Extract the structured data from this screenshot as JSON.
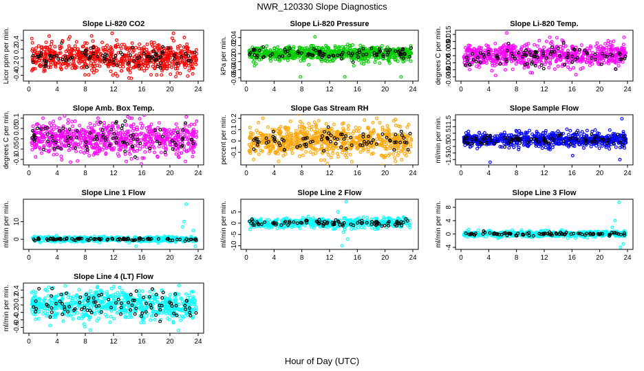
{
  "figure": {
    "title": "NWR_120330  Slope Diagnostics",
    "xlabel": "Hour of Day (UTC)"
  },
  "chart_data": [
    {
      "type": "scatter",
      "title": "Slope Li-820 CO2",
      "ylabel": "Licor ppm per min.",
      "xlim": [
        0,
        24
      ],
      "ylim": [
        -0.5,
        0.6
      ],
      "yticks": [
        -0.4,
        -0.2,
        0.0,
        0.2,
        0.4
      ],
      "xticks": [
        0,
        4,
        8,
        12,
        16,
        20,
        24
      ],
      "grid": false,
      "series": [
        {
          "color": "#ff0000",
          "points_count": 700,
          "spread": 0.18,
          "outliers": [
            [
              5.8,
              0.48
            ],
            [
              8.9,
              0.5
            ],
            [
              11.8,
              0.56
            ],
            [
              20.5,
              0.56
            ],
            [
              12.3,
              -0.36
            ],
            [
              9.2,
              -0.34
            ]
          ]
        },
        {
          "color": "#000000",
          "points_count": 90,
          "spread": 0.12
        }
      ]
    },
    {
      "type": "scatter",
      "title": "Slope Li-820 Pressure",
      "ylabel": "kPa per min.",
      "xlim": [
        0,
        24
      ],
      "ylim": [
        -0.065,
        0.055
      ],
      "yticks": [
        -0.06,
        -0.04,
        -0.02,
        0.0,
        0.02,
        0.04
      ],
      "xticks": [
        0,
        4,
        8,
        12,
        16,
        20,
        24
      ],
      "grid": false,
      "series": [
        {
          "color": "#00cc00",
          "points_count": 700,
          "spread": 0.01,
          "outliers": [
            [
              9.9,
              0.042
            ],
            [
              7.8,
              -0.058
            ],
            [
              14.2,
              -0.058
            ],
            [
              22.3,
              -0.058
            ],
            [
              15.5,
              -0.03
            ],
            [
              9.0,
              -0.028
            ]
          ]
        },
        {
          "color": "#000000",
          "points_count": 90,
          "spread": 0.008
        }
      ]
    },
    {
      "type": "scatter",
      "title": "Slope Li-820 Temp.",
      "ylabel": "degrees C per min.",
      "xlim": [
        0,
        24
      ],
      "ylim": [
        -0.017,
        0.017
      ],
      "yticks": [
        -0.015,
        -0.01,
        -0.005,
        0.0,
        0.005,
        0.01,
        0.015
      ],
      "xticks": [
        0,
        4,
        8,
        12,
        16,
        20,
        24
      ],
      "grid": false,
      "series": [
        {
          "color": "#ff00ff",
          "points_count": 700,
          "spread": 0.0045,
          "outliers": [
            [
              6.6,
              0.016
            ],
            [
              5.0,
              -0.014
            ],
            [
              10.0,
              -0.012
            ],
            [
              12.8,
              0.013
            ],
            [
              23.5,
              0.013
            ]
          ]
        },
        {
          "color": "#000000",
          "points_count": 90,
          "spread": 0.004
        }
      ]
    },
    {
      "type": "scatter",
      "title": "Slope Amb. Box Temp.",
      "ylabel": "degrees C per min.",
      "xlim": [
        0,
        24
      ],
      "ylim": [
        -0.12,
        0.11
      ],
      "yticks": [
        -0.1,
        -0.05,
        0.0,
        0.05,
        0.1
      ],
      "xticks": [
        0,
        4,
        8,
        12,
        16,
        20,
        24
      ],
      "grid": false,
      "series": [
        {
          "color": "#ff00ff",
          "points_count": 700,
          "spread": 0.045,
          "outliers": [
            [
              2.0,
              0.1
            ],
            [
              9.8,
              0.1
            ],
            [
              14.6,
              0.1
            ],
            [
              13.8,
              -0.11
            ],
            [
              22.2,
              -0.11
            ]
          ]
        },
        {
          "color": "#000000",
          "points_count": 90,
          "spread": 0.04
        }
      ]
    },
    {
      "type": "scatter",
      "title": "Slope Gas Stream RH",
      "ylabel": "percent per min.",
      "xlim": [
        0,
        24
      ],
      "ylim": [
        -0.2,
        0.22
      ],
      "yticks": [
        -0.1,
        0.0,
        0.1,
        0.2
      ],
      "xticks": [
        0,
        4,
        8,
        12,
        16,
        20,
        24
      ],
      "grid": false,
      "series": [
        {
          "color": "#ffa500",
          "points_count": 700,
          "spread": 0.08,
          "outliers": [
            [
              2.4,
              0.2
            ],
            [
              18.8,
              0.2
            ],
            [
              21.5,
              0.19
            ],
            [
              21.5,
              -0.18
            ]
          ]
        },
        {
          "color": "#000000",
          "points_count": 80,
          "spread": 0.06
        }
      ]
    },
    {
      "type": "scatter",
      "title": "Slope Sample Flow",
      "ylabel": "ml/min per min.",
      "xlim": [
        0,
        24
      ],
      "ylim": [
        -1.8,
        1.8
      ],
      "yticks": [
        -1.5,
        -1.0,
        -0.5,
        0.0,
        0.5,
        1.0,
        1.5
      ],
      "xticks": [
        0,
        4,
        8,
        12,
        16,
        20,
        24
      ],
      "grid": false,
      "series": [
        {
          "color": "#0000ff",
          "points_count": 700,
          "spread": 0.3,
          "outliers": [
            [
              4.2,
              -1.7
            ],
            [
              23.2,
              1.6
            ],
            [
              22.9,
              -1.5
            ],
            [
              16.1,
              -1.2
            ]
          ]
        },
        {
          "color": "#000000",
          "points_count": 90,
          "spread": 0.25
        }
      ]
    },
    {
      "type": "scatter",
      "title": "Slope Line 1 Flow",
      "ylabel": "ml/min per min.",
      "xlim": [
        0,
        24
      ],
      "ylim": [
        -5,
        22
      ],
      "yticks": [
        0,
        10
      ],
      "xticks": [
        0,
        4,
        8,
        12,
        16,
        20,
        24
      ],
      "grid": false,
      "series": [
        {
          "color": "#00ffff",
          "points_count": 500,
          "spread": 0.8,
          "outliers": [
            [
              22.3,
              20
            ],
            [
              22.0,
              10
            ],
            [
              21.8,
              7
            ],
            [
              14.2,
              -2
            ],
            [
              15.2,
              -4
            ],
            [
              23.3,
              5
            ],
            [
              23.6,
              -4
            ]
          ]
        },
        {
          "color": "#000000",
          "points_count": 90,
          "spread": 0.4
        }
      ]
    },
    {
      "type": "scatter",
      "title": "Slope Line 2 Flow",
      "ylabel": "ml/min per min.",
      "xlim": [
        0,
        24
      ],
      "ylim": [
        -11,
        10
      ],
      "yticks": [
        -10,
        -5,
        0,
        5
      ],
      "xticks": [
        0,
        4,
        8,
        12,
        16,
        20,
        24
      ],
      "grid": false,
      "series": [
        {
          "color": "#00ffff",
          "points_count": 500,
          "spread": 1.2,
          "outliers": [
            [
              14.4,
              9.5
            ],
            [
              13.8,
              -10
            ],
            [
              14.6,
              -7
            ],
            [
              13.2,
              5
            ],
            [
              14.0,
              -4
            ]
          ]
        },
        {
          "color": "#000000",
          "points_count": 90,
          "spread": 0.8
        }
      ]
    },
    {
      "type": "scatter",
      "title": "Slope Line 3 Flow",
      "ylabel": "ml/min per min.",
      "xlim": [
        0,
        24
      ],
      "ylim": [
        -4.2,
        10
      ],
      "yticks": [
        -4,
        0,
        4,
        8
      ],
      "xticks": [
        0,
        4,
        8,
        12,
        16,
        20,
        24
      ],
      "grid": false,
      "series": [
        {
          "color": "#00ffff",
          "points_count": 500,
          "spread": 0.5,
          "outliers": [
            [
              22.8,
              9.5
            ],
            [
              22.2,
              4
            ],
            [
              21.8,
              2
            ],
            [
              23.4,
              -3
            ],
            [
              23.0,
              -4
            ]
          ]
        },
        {
          "color": "#000000",
          "points_count": 90,
          "spread": 0.3
        }
      ]
    },
    {
      "type": "scatter",
      "title": "Slope Line 4 (LT) Flow",
      "ylabel": "ml/min per min.",
      "xlim": [
        0,
        24
      ],
      "ylim": [
        -0.72,
        0.55
      ],
      "yticks": [
        -0.6,
        -0.4,
        -0.2,
        0.0,
        0.2,
        0.4
      ],
      "xticks": [
        0,
        4,
        8,
        12,
        16,
        20,
        24
      ],
      "grid": false,
      "series": [
        {
          "color": "#00ffff",
          "points_count": 700,
          "spread": 0.22,
          "outliers": [
            [
              21.3,
              0.52
            ],
            [
              21.2,
              -0.68
            ],
            [
              3.0,
              -0.55
            ]
          ]
        },
        {
          "color": "#000000",
          "points_count": 90,
          "spread": 0.18
        }
      ]
    }
  ]
}
